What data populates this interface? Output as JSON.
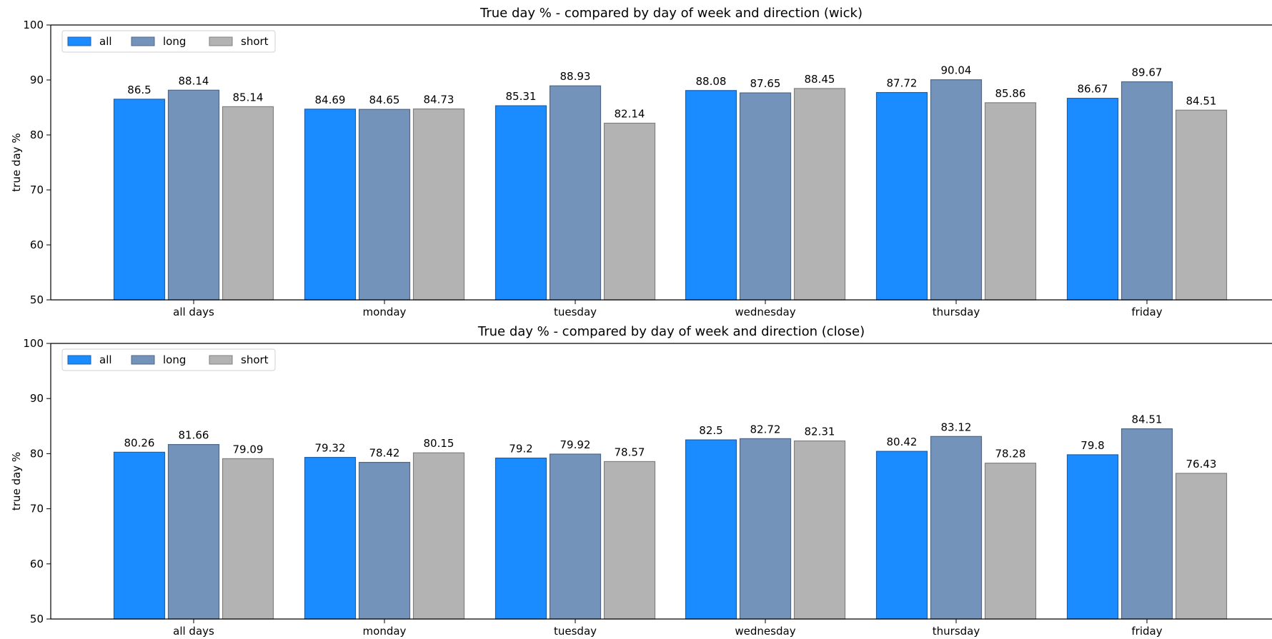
{
  "chart_data": [
    {
      "type": "bar",
      "title": "True day % - compared by day of week and direction (wick)",
      "xlabel": "",
      "ylabel": "true day %",
      "ylim": [
        50,
        100
      ],
      "yticks": [
        50,
        60,
        70,
        80,
        90,
        100
      ],
      "grid": false,
      "legend_position": "top-left",
      "categories": [
        "all days",
        "monday",
        "tuesday",
        "wednesday",
        "thursday",
        "friday"
      ],
      "series": [
        {
          "name": "all",
          "color": "#1a8cff",
          "edge": "#1f5fa8",
          "values": [
            86.5,
            84.69,
            85.31,
            88.08,
            87.72,
            86.67
          ]
        },
        {
          "name": "long",
          "color": "#7393bb",
          "edge": "#4f6787",
          "values": [
            88.14,
            84.65,
            88.93,
            87.65,
            90.04,
            89.67
          ]
        },
        {
          "name": "short",
          "color": "#b3b3b3",
          "edge": "#808080",
          "values": [
            85.14,
            84.73,
            82.14,
            88.45,
            85.86,
            84.51
          ]
        }
      ]
    },
    {
      "type": "bar",
      "title": "True day % - compared by day of week and direction (close)",
      "xlabel": "",
      "ylabel": "true day %",
      "ylim": [
        50,
        100
      ],
      "yticks": [
        50,
        60,
        70,
        80,
        90,
        100
      ],
      "grid": false,
      "legend_position": "top-left",
      "categories": [
        "all days",
        "monday",
        "tuesday",
        "wednesday",
        "thursday",
        "friday"
      ],
      "series": [
        {
          "name": "all",
          "color": "#1a8cff",
          "edge": "#1f5fa8",
          "values": [
            80.26,
            79.32,
            79.2,
            82.5,
            80.42,
            79.8
          ]
        },
        {
          "name": "long",
          "color": "#7393bb",
          "edge": "#4f6787",
          "values": [
            81.66,
            78.42,
            79.92,
            82.72,
            83.12,
            84.51
          ]
        },
        {
          "name": "short",
          "color": "#b3b3b3",
          "edge": "#808080",
          "values": [
            79.09,
            80.15,
            78.57,
            82.31,
            78.28,
            76.43
          ]
        }
      ]
    }
  ]
}
